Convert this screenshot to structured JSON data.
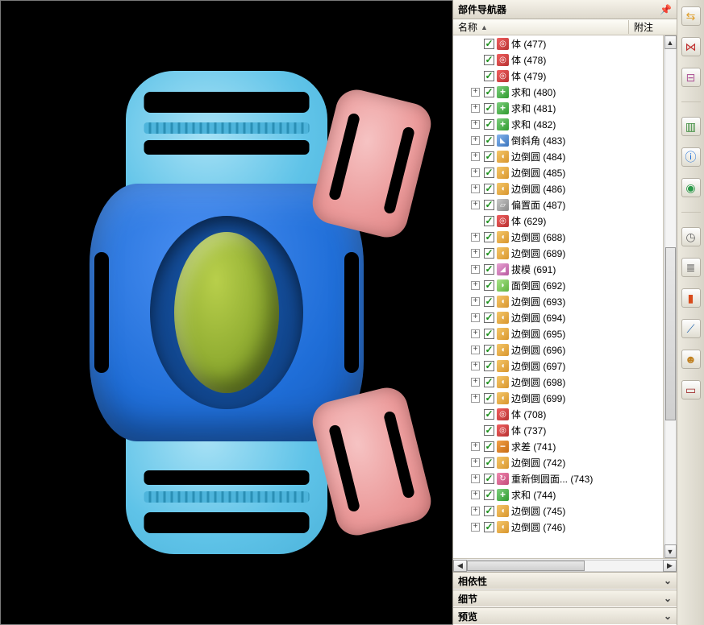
{
  "panel": {
    "title": "部件导航器",
    "columns": {
      "name": "名称",
      "note": "附注"
    },
    "sections": {
      "dependencies": "相依性",
      "details": "细节",
      "preview": "预览"
    }
  },
  "tree": {
    "items": [
      {
        "icon": "ic-body",
        "label": "体 (477)",
        "expandable": false
      },
      {
        "icon": "ic-body",
        "label": "体 (478)",
        "expandable": false
      },
      {
        "icon": "ic-body",
        "label": "体 (479)",
        "expandable": false
      },
      {
        "icon": "ic-unite",
        "label": "求和 (480)",
        "expandable": true
      },
      {
        "icon": "ic-unite",
        "label": "求和 (481)",
        "expandable": true
      },
      {
        "icon": "ic-unite",
        "label": "求和 (482)",
        "expandable": true
      },
      {
        "icon": "ic-chamfer",
        "label": "倒斜角 (483)",
        "expandable": true
      },
      {
        "icon": "ic-blend",
        "label": "边倒圆 (484)",
        "expandable": true
      },
      {
        "icon": "ic-blend",
        "label": "边倒圆 (485)",
        "expandable": true
      },
      {
        "icon": "ic-blend",
        "label": "边倒圆 (486)",
        "expandable": true
      },
      {
        "icon": "ic-offset",
        "label": "偏置面 (487)",
        "expandable": true
      },
      {
        "icon": "ic-body",
        "label": "体 (629)",
        "expandable": false
      },
      {
        "icon": "ic-blend",
        "label": "边倒圆 (688)",
        "expandable": true
      },
      {
        "icon": "ic-blend",
        "label": "边倒圆 (689)",
        "expandable": true
      },
      {
        "icon": "ic-draft",
        "label": "拔模 (691)",
        "expandable": true
      },
      {
        "icon": "ic-faceblend",
        "label": "面倒圆 (692)",
        "expandable": true
      },
      {
        "icon": "ic-blend",
        "label": "边倒圆 (693)",
        "expandable": true
      },
      {
        "icon": "ic-blend",
        "label": "边倒圆 (694)",
        "expandable": true
      },
      {
        "icon": "ic-blend",
        "label": "边倒圆 (695)",
        "expandable": true
      },
      {
        "icon": "ic-blend",
        "label": "边倒圆 (696)",
        "expandable": true
      },
      {
        "icon": "ic-blend",
        "label": "边倒圆 (697)",
        "expandable": true
      },
      {
        "icon": "ic-blend",
        "label": "边倒圆 (698)",
        "expandable": true
      },
      {
        "icon": "ic-blend",
        "label": "边倒圆 (699)",
        "expandable": true
      },
      {
        "icon": "ic-body",
        "label": "体 (708)",
        "expandable": false
      },
      {
        "icon": "ic-body",
        "label": "体 (737)",
        "expandable": false
      },
      {
        "icon": "ic-subtract",
        "label": "求差 (741)",
        "expandable": true
      },
      {
        "icon": "ic-blend",
        "label": "边倒圆 (742)",
        "expandable": true
      },
      {
        "icon": "ic-reblend",
        "label": "重新倒圆面... (743)",
        "expandable": true
      },
      {
        "icon": "ic-unite",
        "label": "求和 (744)",
        "expandable": true
      },
      {
        "icon": "ic-blend",
        "label": "边倒圆 (745)",
        "expandable": true
      },
      {
        "icon": "ic-blend",
        "label": "边倒圆 (746)",
        "expandable": true
      }
    ]
  },
  "toolbar": {
    "items": [
      {
        "name": "flow-icon",
        "glyph": "⇆",
        "color": "#e0a030"
      },
      {
        "name": "link-icon",
        "glyph": "⋈",
        "color": "#c03030"
      },
      {
        "name": "hierarchy-icon",
        "glyph": "⊟",
        "color": "#b05a9a"
      },
      {
        "name": "books-icon",
        "glyph": "▥",
        "color": "#3a8a3a"
      },
      {
        "name": "info-icon",
        "glyph": "ⓘ",
        "color": "#1a6ed8"
      },
      {
        "name": "globe-icon",
        "glyph": "◉",
        "color": "#2a9a4a"
      },
      {
        "name": "clock-icon",
        "glyph": "◷",
        "color": "#666666"
      },
      {
        "name": "list-icon",
        "glyph": "≣",
        "color": "#444444"
      },
      {
        "name": "palette-icon",
        "glyph": "▮",
        "color": "#d84a1a"
      },
      {
        "name": "ruler-icon",
        "glyph": "⟋",
        "color": "#2a6ab0"
      },
      {
        "name": "people-icon",
        "glyph": "☻",
        "color": "#c08020"
      },
      {
        "name": "sheet-icon",
        "glyph": "▭",
        "color": "#a02a2a"
      }
    ]
  },
  "model": {
    "colors": {
      "light_blue": "#5fc3e8",
      "dark_blue": "#1f6ed8",
      "pink": "#eb9a9a",
      "olive": "#8ba82e",
      "background": "#000000"
    }
  }
}
